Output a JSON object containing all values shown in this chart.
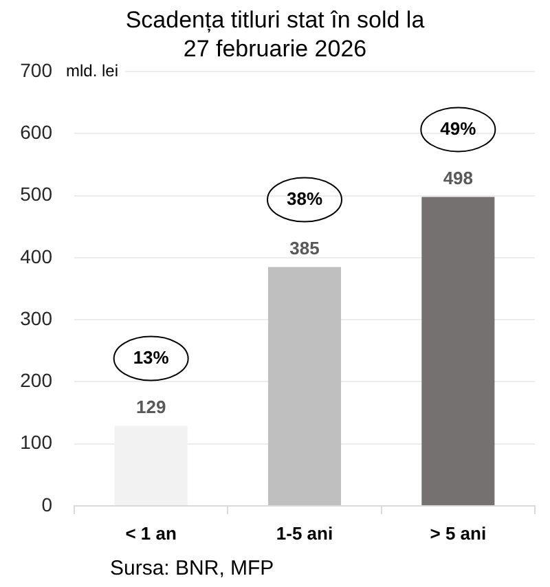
{
  "chart_data": {
    "type": "bar",
    "title": "Scadența titluri stat în sold la 27 februarie 2026",
    "ylabel": "mld. lei",
    "categories": [
      "< 1 an",
      "1-5 ani",
      "> 5 ani"
    ],
    "values": [
      129,
      385,
      498
    ],
    "colors": [
      "#f2f2f2",
      "#bfbfbf",
      "#767171"
    ],
    "ylim": [
      0,
      700
    ],
    "yticks": [
      0,
      100,
      200,
      300,
      400,
      500,
      600,
      700
    ],
    "grid": "y",
    "data_labels": true,
    "annotations": [
      "13%",
      "38%",
      "49%",
      "Sursa: BNR, MFP"
    ]
  }
}
